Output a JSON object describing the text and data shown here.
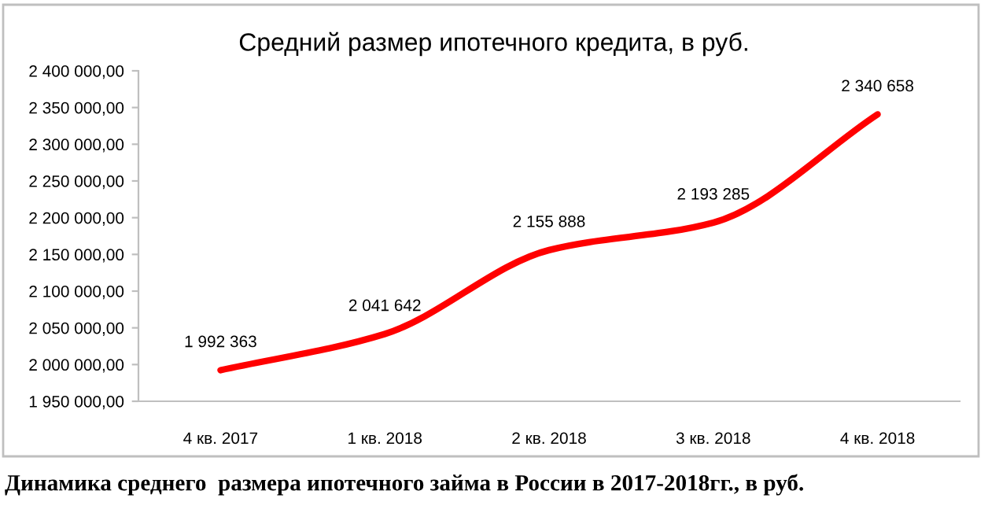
{
  "chart_data": {
    "type": "line",
    "title": "Средний размер ипотечного кредита, в руб.",
    "categories": [
      "4 кв. 2017",
      "1 кв. 2018",
      "2 кв. 2018",
      "3 кв. 2018",
      "4 кв. 2018"
    ],
    "series": [
      {
        "color": "#ff0000",
        "values": [
          1992363,
          2041642,
          2155888,
          2193285,
          2340658
        ],
        "value_labels": [
          "1 992 363",
          "2 041 642",
          "2 155 888",
          "2 193 285",
          "2 340 658"
        ]
      }
    ],
    "ylim": [
      1950000,
      2400000
    ],
    "yticks": [
      {
        "value": 1950000,
        "label": "1 950 000,00"
      },
      {
        "value": 2000000,
        "label": "2 000 000,00"
      },
      {
        "value": 2050000,
        "label": "2 050 000,00"
      },
      {
        "value": 2100000,
        "label": "2 100 000,00"
      },
      {
        "value": 2150000,
        "label": "2 150 000,00"
      },
      {
        "value": 2200000,
        "label": "2 200 000,00"
      },
      {
        "value": 2250000,
        "label": "2 250 000,00"
      },
      {
        "value": 2300000,
        "label": "2 300 000,00"
      },
      {
        "value": 2350000,
        "label": "2 350 000,00"
      },
      {
        "value": 2400000,
        "label": "2 400 000,00"
      }
    ],
    "annotations": [
      "Динамика среднего  размера ипотечного займа в России в 2017-2018гг., в руб."
    ]
  }
}
